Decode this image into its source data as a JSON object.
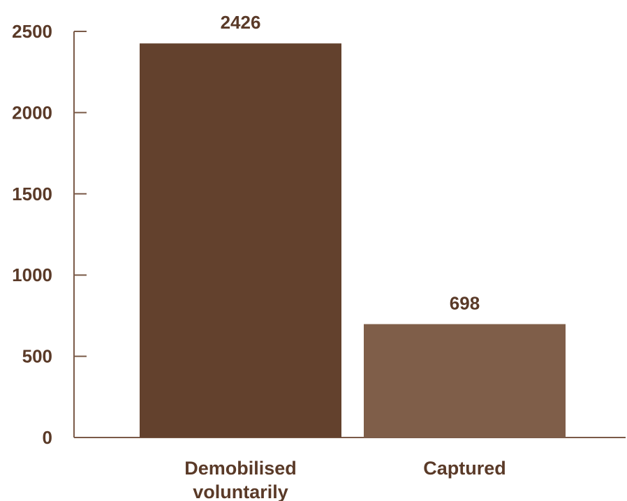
{
  "chart_data": {
    "type": "bar",
    "categories": [
      [
        "Demobilised",
        "voluntarily"
      ],
      [
        "Captured"
      ]
    ],
    "values": [
      2426,
      698
    ],
    "value_labels": [
      "2426",
      "698"
    ],
    "bar_colors": [
      "#63412d",
      "#7f5e49"
    ],
    "ylim": [
      0,
      2500
    ],
    "yticks": [
      0,
      500,
      1000,
      1500,
      2000,
      2500
    ],
    "ytick_labels": [
      "0",
      "500",
      "1000",
      "1500",
      "2000",
      "2500"
    ],
    "title": "",
    "xlabel": "",
    "ylabel": "",
    "grid": false,
    "legend": "none"
  }
}
